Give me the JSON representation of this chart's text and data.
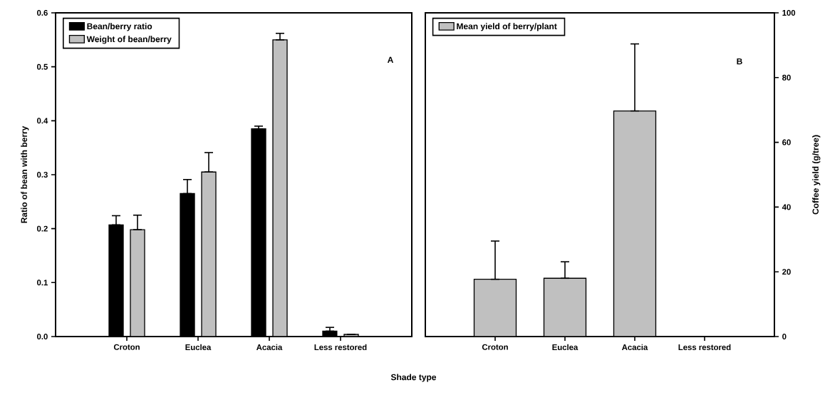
{
  "chart_data": [
    {
      "type": "bar",
      "xlabel": "Shade type",
      "ylabel": "Ratio of bean with berry",
      "categories": [
        "Croton",
        "Euclea",
        "Acacia",
        "Less restored"
      ],
      "series": [
        {
          "name": "Bean/berry ratio",
          "color": "#000000",
          "values": [
            0.207,
            0.265,
            0.385,
            0.01
          ],
          "errors": [
            [
              0.207,
              0.224
            ],
            [
              0.265,
              0.291
            ],
            [
              0.385,
              0.39
            ],
            [
              0.01,
              0.017
            ]
          ]
        },
        {
          "name": "Weight of bean/berry",
          "color": "#c0c0c0",
          "values": [
            0.198,
            0.305,
            0.55,
            0.004
          ],
          "errors": [
            [
              0.198,
              0.225
            ],
            [
              0.305,
              0.341
            ],
            [
              0.55,
              0.562
            ],
            null
          ]
        }
      ],
      "ylim": [
        0,
        0.6
      ],
      "yticks": [
        {
          "value": 0,
          "label": "0.0"
        },
        0.1,
        0.2,
        0.3,
        0.4,
        0.5,
        0.6
      ],
      "legend": "top left",
      "annotations": [
        "A"
      ]
    },
    {
      "type": "bar",
      "ylabel": "Coffee yield (g/tree)",
      "categories": [
        "Croton",
        "Euclea",
        "Acacia",
        "Less restored"
      ],
      "series": [
        {
          "name": "Mean yield of berry/plant",
          "color": "#c0c0c0",
          "values": [
            17.7,
            18.0,
            69.7,
            0
          ],
          "errors": [
            [
              17.7,
              29.5
            ],
            [
              18.0,
              23.1
            ],
            [
              69.7,
              90.4
            ],
            null
          ]
        }
      ],
      "ylim": [
        0,
        100
      ],
      "yticks": [
        0,
        20,
        40,
        60,
        80,
        100
      ],
      "legend": "top left",
      "annotations": [
        "B"
      ]
    }
  ]
}
